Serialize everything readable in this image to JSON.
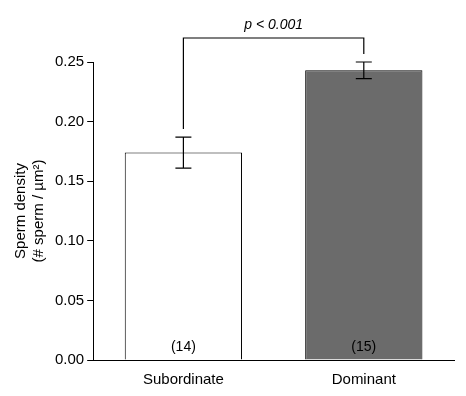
{
  "chart_data": {
    "type": "bar",
    "y_label": [
      "Sperm density",
      "(# sperm / µm²)"
    ],
    "categories": [
      "Subordinate",
      "Dominant"
    ],
    "values": [
      0.174,
      0.243
    ],
    "errors": [
      0.013,
      0.007
    ],
    "colors": [
      "#ffffff",
      "#6b6b6b"
    ],
    "sample_sizes": [
      "(14)",
      "(15)"
    ],
    "annotations": [
      {
        "text": "p < 0.001",
        "from": "Subordinate",
        "to": "Dominant"
      }
    ],
    "ylim": [
      0,
      0.25
    ],
    "yticks": [
      {
        "value": 0,
        "label": "0.00"
      },
      0.05,
      {
        "value": 0.1,
        "label": "0.10"
      },
      0.15,
      {
        "value": 0.2,
        "label": "0.20"
      },
      0.25
    ],
    "grid": false
  }
}
